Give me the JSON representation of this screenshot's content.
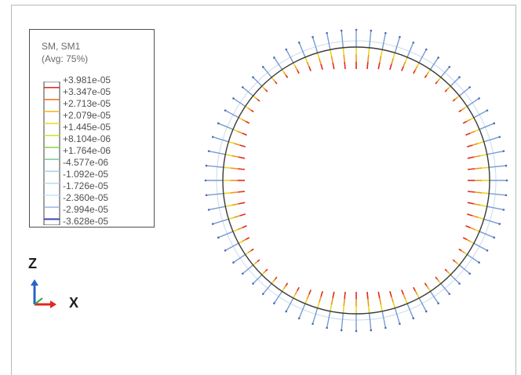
{
  "legend": {
    "title": "SM, SM1",
    "subtitle": "(Avg: 75%)",
    "values": [
      "+3.981e-05",
      "+3.347e-05",
      "+2.713e-05",
      "+2.079e-05",
      "+1.445e-05",
      "+8.104e-06",
      "+1.764e-06",
      "-4.577e-06",
      "-1.092e-05",
      "-1.726e-05",
      "-2.360e-05",
      "-2.994e-05",
      "-3.628e-05"
    ],
    "band_colors": [
      "#e41e1e",
      "#f06b1e",
      "#f4b41e",
      "#e6dc1e",
      "#c8e61e",
      "#8cd23c",
      "#7ac8a0",
      "#a0d2ea",
      "#b4daf2",
      "#c6e2f5",
      "#9ab4e0",
      "#3c46b4"
    ]
  },
  "triad": {
    "z_label": "Z",
    "x_label": "X"
  },
  "colors": {
    "ring": "#3a3a3a",
    "outer_tick": "#7a9ad2",
    "inner_red": "#e02a1e",
    "inner_orange": "#f0961e",
    "inner_yellow": "#e8d81e"
  }
}
